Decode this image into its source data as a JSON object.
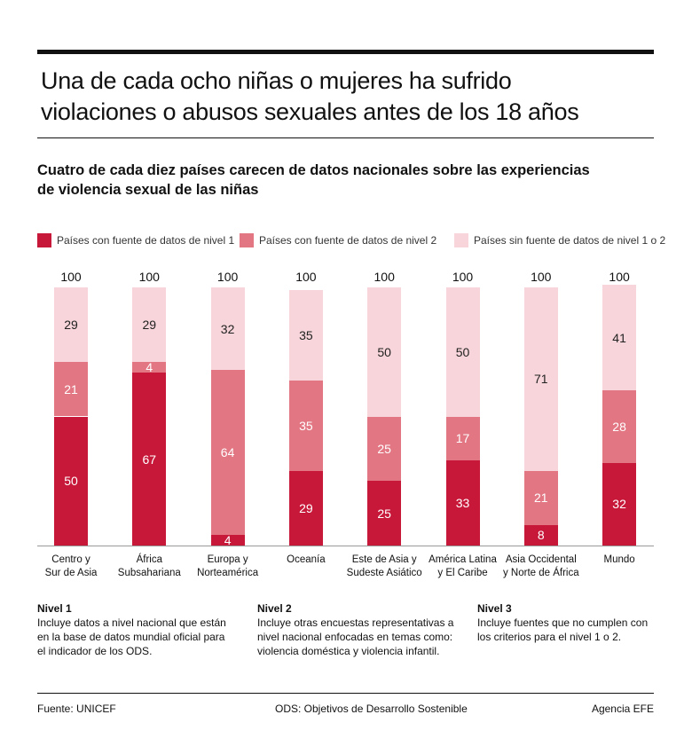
{
  "chart_data": {
    "type": "stacked-bar",
    "title": "Una de cada ocho niñas o mujeres ha sufrido\nviolaciones o abusos sexuales antes de los 18 años",
    "subtitle": "Cuatro de cada diez países carecen de datos nacionales sobre las experiencias\nde violencia sexual de las niñas",
    "categories": [
      "Centro y\nSur de Asia",
      "África\nSubsahariana",
      "Europa y\nNorteamérica",
      "Oceanía",
      "Este de Asia y\nSudeste Asiático",
      "América Latina\ny El Caribe",
      "Asia Occidental\ny Norte de África",
      "Mundo"
    ],
    "totals": [
      100,
      100,
      100,
      100,
      100,
      100,
      100,
      100
    ],
    "series": [
      {
        "name": "Países con fuente de datos de nivel 1",
        "color": "#c8183a",
        "values": [
          50,
          67,
          4,
          29,
          25,
          33,
          8,
          32
        ]
      },
      {
        "name": "Países con fuente de datos de nivel 2",
        "color": "#e27683",
        "values": [
          21,
          4,
          64,
          35,
          25,
          17,
          21,
          28
        ]
      },
      {
        "name": "Países sin fuente de datos de nivel 1 o 2",
        "color": "#f7d5da",
        "values": [
          29,
          29,
          32,
          35,
          50,
          50,
          71,
          41
        ]
      }
    ]
  },
  "notes": [
    {
      "title": "Nivel 1",
      "text": "Incluye datos a nivel nacional que están\nen la base de datos mundial oficial para\nel indicador de los ODS."
    },
    {
      "title": "Nivel 2",
      "text": "Incluye otras encuestas representativas a\nnivel nacional enfocadas en temas como:\nviolencia doméstica y violencia infantil."
    },
    {
      "title": "Nivel 3",
      "text": "Incluye fuentes que no cumplen con\nlos criterios para el nivel 1 o 2."
    }
  ],
  "footer": {
    "source": "Fuente: UNICEF",
    "abbreviation": "ODS: Objetivos de Desarrollo Sostenible",
    "agency": "Agencia EFE"
  }
}
